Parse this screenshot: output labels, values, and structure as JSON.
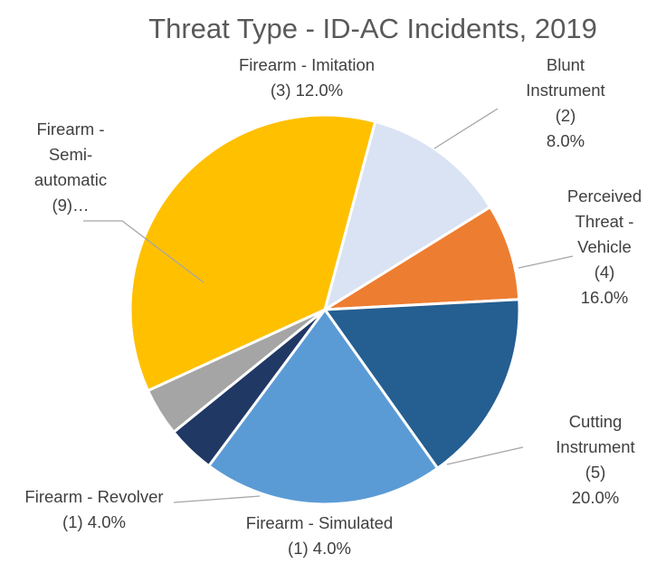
{
  "chart_data": {
    "type": "pie",
    "title": "Threat Type - ID-AC Incidents, 2019",
    "slices": [
      {
        "name": "Firearm - Imitation",
        "value": 3,
        "percent": "12.0%",
        "color": "#dae3f3",
        "label_lines": [
          "Firearm - Imitation",
          "(3) 12.0%"
        ]
      },
      {
        "name": "Blunt Instrument",
        "value": 2,
        "percent": "8.0%",
        "color": "#ed7d31",
        "label_lines": [
          "Blunt",
          "Instrument",
          "(2)",
          "8.0%"
        ]
      },
      {
        "name": "Perceived Threat - Vehicle",
        "value": 4,
        "percent": "16.0%",
        "color": "#255e91",
        "label_lines": [
          "Perceived",
          "Threat -",
          "Vehicle",
          "(4)",
          "16.0%"
        ]
      },
      {
        "name": "Cutting Instrument",
        "value": 5,
        "percent": "20.0%",
        "color": "#5b9bd5",
        "label_lines": [
          "Cutting",
          "Instrument",
          "(5)",
          "20.0%"
        ]
      },
      {
        "name": "Firearm - Simulated",
        "value": 1,
        "percent": "4.0%",
        "color": "#203864",
        "label_lines": [
          "Firearm - Simulated",
          "(1) 4.0%"
        ]
      },
      {
        "name": "Firearm - Revolver",
        "value": 1,
        "percent": "4.0%",
        "color": "#a5a5a5",
        "label_lines": [
          "Firearm - Revolver",
          "(1) 4.0%"
        ]
      },
      {
        "name": "Firearm - Semi-automatic",
        "value": 9,
        "percent": "36.0%",
        "color": "#ffc000",
        "label_lines": [
          "Firearm -",
          "Semi-",
          "automatic",
          "(9)…"
        ]
      }
    ]
  }
}
